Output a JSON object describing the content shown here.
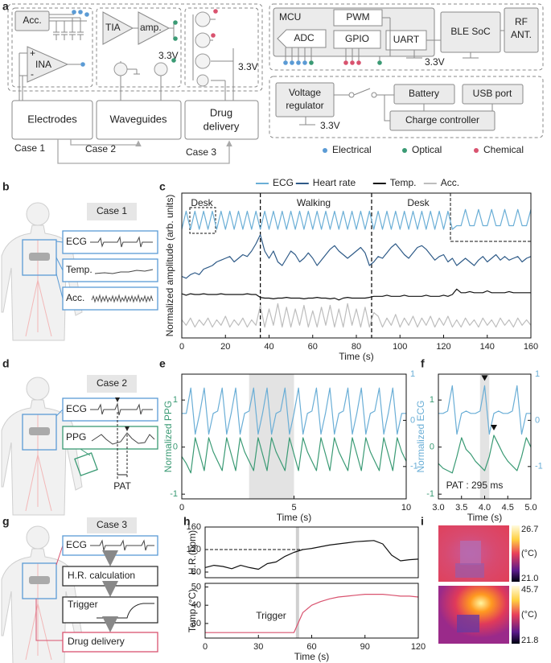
{
  "labels": [
    "a",
    "b",
    "c",
    "d",
    "e",
    "f",
    "g",
    "h",
    "i"
  ],
  "diagram": {
    "a": {
      "acc": "Acc.",
      "ina": "INA",
      "plus": "+",
      "minus": "-",
      "tia": "TIA",
      "amp": "amp.",
      "v": [
        "3.3V",
        "3.3V",
        "3.3V",
        "3.3V"
      ],
      "mcu": "MCU",
      "pwm": "PWM",
      "adc": "ADC",
      "gpio": "GPIO",
      "uart": "UART",
      "ble": "BLE SoC",
      "rf": [
        "RF",
        "ANT."
      ],
      "regulator": [
        "Voltage",
        "regulator"
      ],
      "battery": "Battery",
      "usb": "USB port",
      "charge": "Charge controller",
      "blocks": [
        "Electrodes",
        "Waveguides",
        "Drug",
        "delivery"
      ],
      "cases": [
        "Case 1",
        "Case 2",
        "Case 3"
      ],
      "legend": [
        {
          "name": "Electrical",
          "color": "#5b9bd5"
        },
        {
          "name": "Optical",
          "color": "#3a9a74"
        },
        {
          "name": "Chemical",
          "color": "#d9536f"
        }
      ]
    },
    "b": {
      "case": "Case 1",
      "signals": [
        "ECG",
        "Temp.",
        "Acc."
      ]
    },
    "d": {
      "case": "Case 2",
      "signals": [
        "ECG",
        "PPG"
      ],
      "pat": "PAT"
    },
    "g": {
      "case": "Case 3",
      "steps": [
        "ECG",
        "H.R. calculation",
        "Trigger",
        "Drug delivery"
      ]
    },
    "i": {
      "images": [
        {
          "max": "26.7",
          "min": "21.0"
        },
        {
          "max": "45.7",
          "min": "21.8"
        }
      ],
      "unit": "(°C)"
    }
  },
  "chart_data": [
    {
      "type": "line",
      "xlabel": "Time (s)",
      "ylabel": "Normalized amplitude (arb. units)",
      "legend": "top",
      "xlim": [
        0,
        160
      ],
      "xticks": [
        0,
        20,
        40,
        60,
        80,
        100,
        120,
        140,
        160
      ],
      "ylim": [
        0,
        4
      ],
      "vlines": [
        36,
        87
      ],
      "vline_color": "#000000",
      "vline_dash": true,
      "annotations": [
        "Desk",
        "Walking",
        "Desk"
      ],
      "x": [
        0,
        2,
        4,
        6,
        8,
        10,
        12,
        14,
        16,
        18,
        20,
        22,
        24,
        26,
        28,
        30,
        32,
        34,
        36,
        38,
        40,
        42,
        44,
        46,
        48,
        50,
        52,
        54,
        56,
        58,
        60,
        62,
        64,
        66,
        68,
        70,
        72,
        74,
        76,
        78,
        80,
        82,
        84,
        86,
        88,
        90,
        92,
        94,
        96,
        98,
        100,
        102,
        104,
        106,
        108,
        110,
        112,
        114,
        116,
        118,
        120,
        122,
        124,
        126,
        128,
        130,
        132,
        134,
        136,
        138,
        140,
        142,
        144,
        146,
        148,
        150,
        152,
        154,
        156,
        158,
        160
      ],
      "series": [
        {
          "name": "ECG",
          "color": "#6aaed6",
          "values": [
            3.0,
            3.5,
            3.0,
            3.5,
            3.0,
            3.5,
            3.0,
            3.5,
            3.0,
            3.5,
            3.0,
            3.5,
            3.0,
            3.5,
            3.0,
            3.5,
            3.0,
            3.5,
            3.0,
            3.5,
            3.0,
            3.5,
            3.0,
            3.5,
            3.0,
            3.5,
            3.0,
            3.5,
            3.0,
            3.5,
            3.0,
            3.5,
            3.0,
            3.5,
            3.0,
            3.5,
            3.0,
            3.5,
            3.0,
            3.5,
            3.0,
            3.5,
            3.0,
            3.5,
            3.0,
            3.5,
            3.0,
            3.5,
            3.0,
            3.5,
            3.0,
            3.5,
            3.0,
            3.5,
            3.0,
            3.5,
            3.0,
            3.5,
            3.0,
            3.5,
            3.0,
            3.5,
            3.0,
            3.1,
            3.1,
            3.55,
            3.1,
            3.1,
            3.55,
            3.1,
            3.1,
            3.55,
            3.1,
            3.1,
            3.55,
            3.1,
            3.1,
            3.55,
            3.1,
            3.1,
            3.55
          ]
        },
        {
          "name": "Heart rate",
          "color": "#2e5a87",
          "values": [
            1.7,
            1.65,
            1.75,
            1.8,
            1.75,
            1.9,
            1.95,
            2.0,
            2.1,
            2.15,
            2.2,
            2.25,
            2.1,
            2.2,
            2.3,
            2.25,
            2.4,
            2.6,
            2.85,
            2.4,
            2.2,
            2.4,
            2.1,
            2.0,
            2.2,
            2.4,
            2.3,
            2.1,
            2.2,
            2.35,
            2.2,
            2.0,
            2.15,
            2.3,
            2.45,
            2.55,
            2.4,
            2.3,
            2.2,
            2.3,
            2.4,
            2.5,
            2.35,
            2.0,
            2.1,
            2.25,
            2.2,
            2.35,
            2.5,
            2.6,
            2.45,
            2.3,
            2.2,
            2.35,
            2.5,
            2.55,
            2.45,
            2.3,
            2.15,
            2.25,
            2.3,
            2.1,
            2.2,
            2.0,
            2.1,
            2.2,
            2.1,
            2.0,
            2.15,
            2.25,
            2.1,
            2.2,
            2.3,
            2.15,
            2.25,
            2.15,
            2.2,
            2.25,
            2.1,
            2.2,
            2.25
          ]
        },
        {
          "name": "Temp.",
          "color": "#111111",
          "values": [
            1.22,
            1.18,
            1.22,
            1.2,
            1.2,
            1.22,
            1.2,
            1.2,
            1.2,
            1.22,
            1.2,
            1.2,
            1.2,
            1.2,
            1.2,
            1.22,
            1.2,
            1.2,
            1.12,
            1.1,
            1.1,
            1.08,
            1.1,
            1.1,
            1.12,
            1.1,
            1.1,
            1.1,
            1.08,
            1.1,
            1.1,
            1.12,
            1.1,
            1.1,
            1.08,
            1.1,
            1.05,
            1.1,
            1.12,
            1.1,
            1.1,
            1.1,
            1.1,
            1.12,
            1.15,
            1.15,
            1.15,
            1.18,
            1.15,
            1.15,
            1.15,
            1.18,
            1.15,
            1.15,
            1.15,
            1.15,
            1.18,
            1.15,
            1.15,
            1.15,
            1.18,
            1.15,
            1.2,
            1.35,
            1.25,
            1.25,
            1.28,
            1.25,
            1.25,
            1.25,
            1.3,
            1.25,
            1.25,
            1.25,
            1.25,
            1.28,
            1.25,
            1.25,
            1.25,
            1.25,
            1.25
          ]
        },
        {
          "name": "Acc.",
          "color": "#bdbdbd",
          "values": [
            0.5,
            0.35,
            0.55,
            0.3,
            0.5,
            0.35,
            0.55,
            0.3,
            0.5,
            0.35,
            0.6,
            0.3,
            0.5,
            0.35,
            0.55,
            0.3,
            0.5,
            0.35,
            0.9,
            0.3,
            0.8,
            0.35,
            0.95,
            0.3,
            0.85,
            0.3,
            0.8,
            0.35,
            0.9,
            0.3,
            0.75,
            0.3,
            0.85,
            0.35,
            0.9,
            0.3,
            0.8,
            0.3,
            0.95,
            0.35,
            0.8,
            0.3,
            0.85,
            0.3,
            0.7,
            0.6,
            0.3,
            0.55,
            0.35,
            0.65,
            0.3,
            0.55,
            0.35,
            0.6,
            0.3,
            0.55,
            0.35,
            0.6,
            0.3,
            0.55,
            0.35,
            0.6,
            0.3,
            0.5,
            0.3,
            0.55,
            0.35,
            0.5,
            0.3,
            0.55,
            0.35,
            0.5,
            0.3,
            0.55,
            0.35,
            0.5,
            0.3,
            0.55,
            0.35,
            0.5,
            0.35
          ]
        }
      ]
    },
    {
      "type": "line",
      "xlabel": "Time (s)",
      "ylabel": "Normalized PPG",
      "y2label": "Normalized ECG",
      "xlim": [
        0,
        10
      ],
      "xticks": [
        0,
        5,
        10
      ],
      "ylim": [
        -1.1,
        1.55
      ],
      "yticks": [
        -1,
        0,
        1
      ],
      "y2lim": [
        -1.7,
        1.0
      ],
      "y2ticks": [
        1,
        0,
        -1
      ],
      "shade": [
        3,
        5
      ],
      "x": [
        0,
        0.2,
        0.4,
        0.6,
        0.8,
        1,
        1.2,
        1.4,
        1.6,
        1.8,
        2,
        2.2,
        2.4,
        2.6,
        2.8,
        3,
        3.2,
        3.4,
        3.6,
        3.8,
        4,
        4.2,
        4.4,
        4.6,
        4.8,
        5,
        5.2,
        5.4,
        5.6,
        5.8,
        6,
        6.2,
        6.4,
        6.6,
        6.8,
        7,
        7.2,
        7.4,
        7.6,
        7.8,
        8,
        8.2,
        8.4,
        8.6,
        8.8,
        9,
        9.2,
        9.4,
        9.6,
        9.8,
        10
      ],
      "series": [
        {
          "color": "#6aaed6",
          "axis": "y2",
          "values": [
            0.15,
            0.15,
            0.7,
            -0.3,
            0.15,
            0.7,
            -0.3,
            0.15,
            0.2,
            0.7,
            -0.3,
            0.15,
            0.7,
            -0.3,
            0.15,
            0.2,
            0.7,
            -0.3,
            0.15,
            0.7,
            -0.3,
            0.15,
            0.2,
            0.7,
            -0.3,
            0.15,
            0.7,
            -0.3,
            0.15,
            0.2,
            0.7,
            -0.3,
            0.15,
            0.7,
            -0.3,
            0.15,
            0.2,
            0.7,
            -0.3,
            0.15,
            0.7,
            -0.3,
            0.15,
            0.2,
            0.7,
            -0.3,
            0.15,
            0.7,
            -0.3,
            0.15,
            0.15
          ]
        },
        {
          "color": "#3a9a74",
          "values": [
            -0.2,
            -0.35,
            -0.55,
            0.2,
            -0.15,
            -0.5,
            0.2,
            -0.1,
            -0.3,
            -0.5,
            0.2,
            -0.15,
            -0.5,
            0.2,
            -0.1,
            -0.3,
            -0.5,
            0.2,
            -0.15,
            -0.5,
            0.2,
            -0.1,
            -0.3,
            -0.5,
            0.2,
            -0.15,
            -0.5,
            0.2,
            -0.1,
            -0.3,
            -0.5,
            0.2,
            -0.15,
            -0.5,
            0.2,
            -0.1,
            -0.3,
            -0.5,
            0.2,
            -0.15,
            -0.5,
            0.2,
            -0.1,
            -0.3,
            -0.5,
            0.2,
            -0.15,
            -0.5,
            0.2,
            -0.1,
            -0.3
          ]
        }
      ]
    },
    {
      "type": "line",
      "xlabel": "Time (s)",
      "xlim": [
        3,
        5
      ],
      "xticks": [
        {
          "value": 3,
          "label": "3.0"
        },
        {
          "value": 3.5,
          "label": "3.5"
        },
        {
          "value": 4,
          "label": "4.0"
        },
        {
          "value": 4.5,
          "label": "4.5"
        },
        {
          "value": 5,
          "label": "5.0"
        }
      ],
      "ylim": [
        -1.1,
        1.55
      ],
      "yticks": [
        -1,
        0,
        1
      ],
      "y2lim": [
        -1.7,
        1.0
      ],
      "y2ticks": [
        1,
        0,
        -1
      ],
      "shade": [
        3.9,
        4.1
      ],
      "markers_x": [
        4,
        4.2
      ],
      "annotations": [
        "PAT : 295 ms"
      ],
      "x": [
        3,
        3.1,
        3.2,
        3.3,
        3.4,
        3.5,
        3.6,
        3.7,
        3.8,
        3.9,
        4,
        4.1,
        4.2,
        4.3,
        4.4,
        4.5,
        4.6,
        4.7,
        4.8,
        4.9,
        5
      ],
      "series": [
        {
          "color": "#6aaed6",
          "axis": "y2",
          "values": [
            0.15,
            0.15,
            0.2,
            0.75,
            -0.3,
            0.15,
            0.2,
            0.15,
            0.15,
            0.2,
            0.75,
            -0.3,
            0.15,
            0.2,
            0.15,
            0.15,
            0.2,
            0.75,
            -0.3,
            0.15,
            0.15
          ]
        },
        {
          "color": "#3a9a74",
          "values": [
            -0.35,
            -0.45,
            -0.5,
            -0.55,
            -0.2,
            0.2,
            -0.05,
            -0.15,
            -0.3,
            -0.4,
            -0.5,
            -0.2,
            0.25,
            0.05,
            -0.15,
            -0.3,
            -0.4,
            -0.5,
            -0.2,
            0.2,
            0.0
          ]
        }
      ]
    },
    {
      "type": "line",
      "ylabel": "H.R.(bpm)",
      "xlim": [
        0,
        120
      ],
      "ylim": [
        70,
        160
      ],
      "yticks": [
        80,
        120,
        160
      ],
      "hline": 120,
      "vlines": [
        52
      ],
      "vline_color": "#d0d0d0",
      "vline_dash": false,
      "x": [
        0,
        5,
        10,
        15,
        20,
        25,
        30,
        35,
        40,
        45,
        50,
        55,
        60,
        65,
        70,
        75,
        80,
        85,
        90,
        95,
        100,
        105,
        110,
        115,
        120
      ],
      "series": [
        {
          "color": "#111111",
          "values": [
            88,
            92,
            90,
            86,
            92,
            88,
            85,
            95,
            98,
            108,
            115,
            120,
            122,
            125,
            128,
            130,
            132,
            134,
            135,
            136,
            130,
            110,
            100,
            102,
            103
          ]
        }
      ]
    },
    {
      "type": "line",
      "xlabel": "Time (s)",
      "ylabel": "Temp.(°C)",
      "xlim": [
        0,
        120
      ],
      "xticks": [
        0,
        30,
        60,
        90,
        120
      ],
      "ylim": [
        22,
        52
      ],
      "yticks": [
        30,
        40,
        50
      ],
      "vlines": [
        52
      ],
      "vline_color": "#d0d0d0",
      "vline_dash": false,
      "annotations": [
        "Trigger"
      ],
      "x": [
        0,
        5,
        10,
        15,
        20,
        25,
        30,
        35,
        40,
        45,
        50,
        55,
        60,
        65,
        70,
        75,
        80,
        85,
        90,
        95,
        100,
        105,
        110,
        115,
        120
      ],
      "series": [
        {
          "color": "#d9536f",
          "values": [
            25,
            25,
            25,
            25,
            25,
            25,
            25,
            25,
            25,
            25,
            25,
            36,
            40,
            42,
            43.5,
            44.5,
            45,
            45.5,
            46,
            46,
            46,
            45.5,
            45,
            45,
            44.5
          ]
        }
      ]
    }
  ]
}
